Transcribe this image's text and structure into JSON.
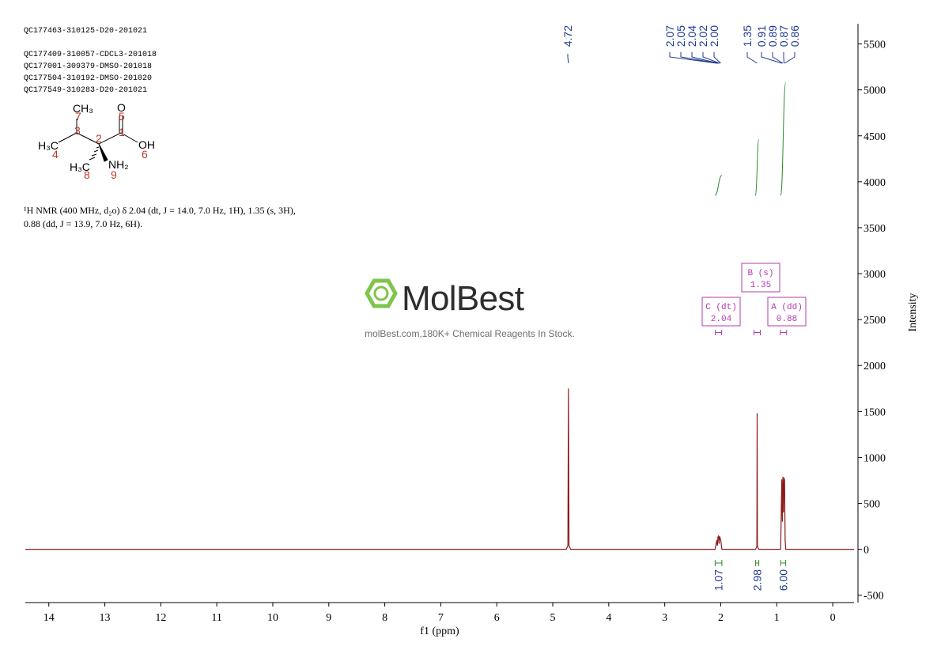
{
  "header": {
    "lines": [
      "QC177463-310125-D20-201021",
      "QC177409-310057-CDCL3-201018",
      "QC177001-309379-DMSO-201018",
      "QC177504-310192-DMSO-201020",
      "QC177549-310283-D20-201021"
    ]
  },
  "structure": {
    "atoms": [
      "CH₃",
      "O",
      "H₃C",
      "OH",
      "H₃C",
      "NH₂"
    ],
    "locants": [
      "7",
      "3",
      "5",
      "1",
      "2",
      "4",
      "6",
      "8",
      "9"
    ]
  },
  "description": [
    "¹H NMR (400 MHz, d₂o) δ 2.04 (dt, J = 14.0, 7.0 Hz, 1H), 1.35 (s, 3H),",
    "0.88 (dd, J = 13.9, 7.0 Hz, 6H)."
  ],
  "watermark": {
    "brand": "MolBest",
    "tagline": "molBest.com,180K+ Chemical Reagents In Stock."
  },
  "chart_data": {
    "type": "line",
    "x_label": "f1 (ppm)",
    "y_label": "Intensity",
    "x": [
      14.42,
      4.76,
      4.73,
      4.72,
      4.71,
      4.68,
      2.1,
      2.07,
      2.06,
      2.05,
      2.04,
      2.03,
      2.02,
      2.0,
      1.98,
      1.38,
      1.355,
      1.35,
      1.345,
      1.32,
      0.93,
      0.91,
      0.9,
      0.89,
      0.88,
      0.87,
      0.86,
      0.85,
      0.84,
      -0.38
    ],
    "series": [
      {
        "name": "1H",
        "color": "#8b1a1a",
        "values": [
          0,
          0,
          40,
          1750,
          40,
          0,
          0,
          100,
          40,
          130,
          150,
          60,
          140,
          100,
          0,
          0,
          30,
          1480,
          30,
          0,
          0,
          760,
          300,
          790,
          400,
          780,
          750,
          100,
          0,
          0
        ]
      }
    ],
    "xlim": [
      14.42,
      -0.38
    ],
    "xticks": [
      14,
      13,
      12,
      11,
      10,
      9,
      8,
      7,
      6,
      5,
      4,
      3,
      2,
      1,
      0
    ],
    "ylim": [
      -580,
      5720
    ],
    "yticks": [
      -500,
      0,
      500,
      1000,
      1500,
      2000,
      2500,
      3000,
      3500,
      4000,
      4500,
      5000,
      5500
    ],
    "peak_labels": [
      4.72,
      2.07,
      2.05,
      2.04,
      2.02,
      {
        "value": 2.0,
        "label": "2.00"
      },
      1.35,
      0.91,
      0.89,
      0.87,
      0.86
    ],
    "integrals": [
      {
        "range": [
          2.1,
          1.98
        ],
        "value": 1.07
      },
      {
        "range": [
          1.38,
          1.32
        ],
        "value": 2.98
      },
      {
        "range": [
          0.93,
          0.84
        ],
        "value": {
          "value": 6.0,
          "label": "6.00"
        }
      }
    ],
    "multiplets": [
      {
        "label": "C (dt)",
        "shift": 2.04
      },
      {
        "label": "B (s)",
        "shift": 1.35
      },
      {
        "label": "A (dd)",
        "shift": 0.88
      }
    ]
  }
}
